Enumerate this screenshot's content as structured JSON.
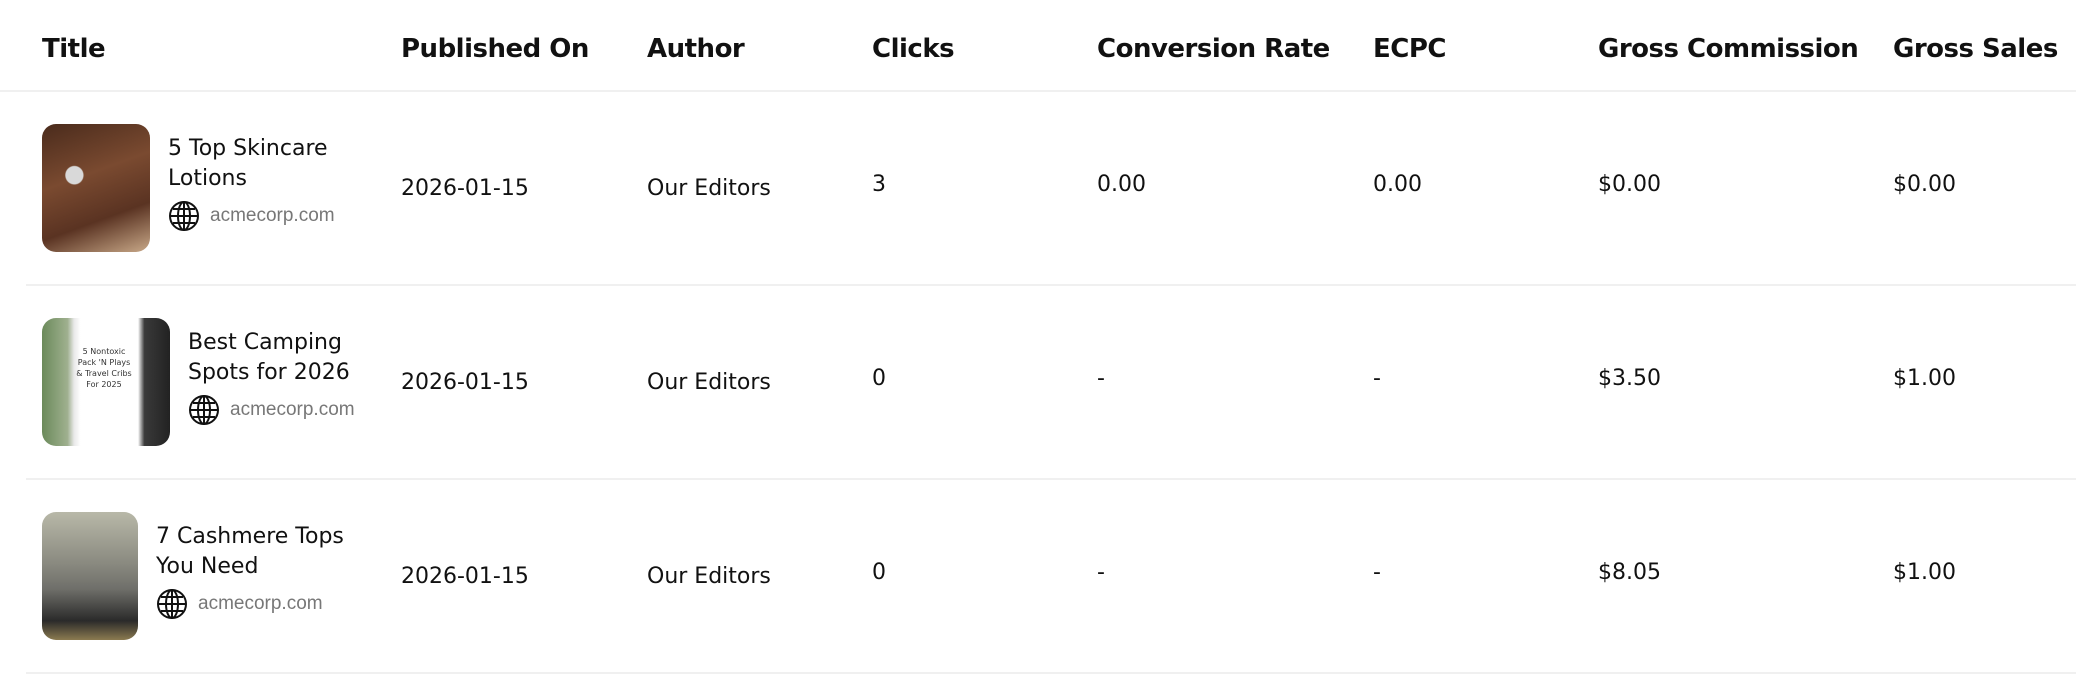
{
  "columns": [
    "Title",
    "Published On",
    "Author",
    "Clicks",
    "Conversion Rate",
    "ECPC",
    "Gross Commission",
    "Gross Sales"
  ],
  "rows": [
    {
      "title": "5 Top Skincare Lotions",
      "domain": "acmecorp.com",
      "published": "2026-01-15",
      "author": "Our Editors",
      "clicks": "3",
      "conversion": "0.00",
      "ecpc": "0.00",
      "commission": "$0.00",
      "sales": "$0.00",
      "thumb": "skincare lotion on arm"
    },
    {
      "title": "Best Camping Spots for 2026",
      "domain": "acmecorp.com",
      "published": "2026-01-15",
      "author": "Our Editors",
      "clicks": "0",
      "conversion": "-",
      "ecpc": "-",
      "commission": "$3.50",
      "sales": "$1.00",
      "thumb": "pack n play article cover",
      "thumb_text": "5 Nontoxic Pack 'N Plays & Travel Cribs For 2025"
    },
    {
      "title": "7 Cashmere Tops You Need",
      "domain": "acmecorp.com",
      "published": "2026-01-15",
      "author": "Our Editors",
      "clicks": "0",
      "conversion": "-",
      "ecpc": "-",
      "commission": "$8.05",
      "sales": "$1.00",
      "thumb": "woman in gray cashmere sweater"
    }
  ]
}
